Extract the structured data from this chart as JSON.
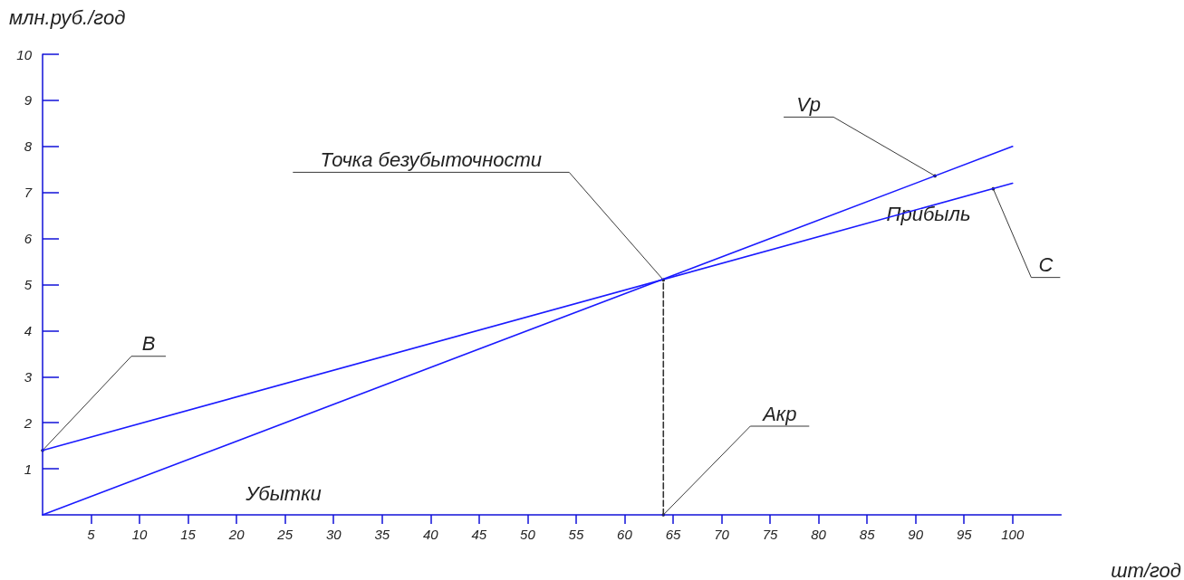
{
  "chart_data": {
    "type": "line",
    "xlabel": "шт/год",
    "ylabel": "млн.руб./год",
    "xlim": [
      0,
      105
    ],
    "ylim": [
      0,
      10
    ],
    "xticks": [
      5,
      10,
      15,
      20,
      25,
      30,
      35,
      40,
      45,
      50,
      55,
      60,
      65,
      70,
      75,
      80,
      85,
      90,
      95,
      100
    ],
    "yticks": [
      1,
      2,
      3,
      4,
      5,
      6,
      7,
      8,
      9,
      10
    ],
    "series": [
      {
        "color": "#1a1aff",
        "x": [
          0,
          100
        ],
        "values": [
          0,
          8
        ]
      },
      {
        "color": "#1a1aff",
        "x": [
          0,
          100
        ],
        "values": [
          1.4,
          7.2
        ]
      },
      {
        "color": "#333333",
        "x": [
          64,
          64
        ],
        "values": [
          0,
          5.1
        ],
        "line_style": "dashed"
      }
    ],
    "annotations": [
      {
        "text": "Точка безубыточности",
        "x": 64,
        "y": 5.1
      },
      {
        "text": "Vp",
        "x": 92,
        "y": 7.36
      },
      {
        "text": "C",
        "x": 98,
        "y": 7.08
      },
      {
        "text": "B",
        "x": 0,
        "y": 1.4
      },
      {
        "text": "Акр",
        "x": 64,
        "y": 0
      },
      "Прибыль",
      "Убытки"
    ],
    "marker": "none",
    "grid": false
  }
}
